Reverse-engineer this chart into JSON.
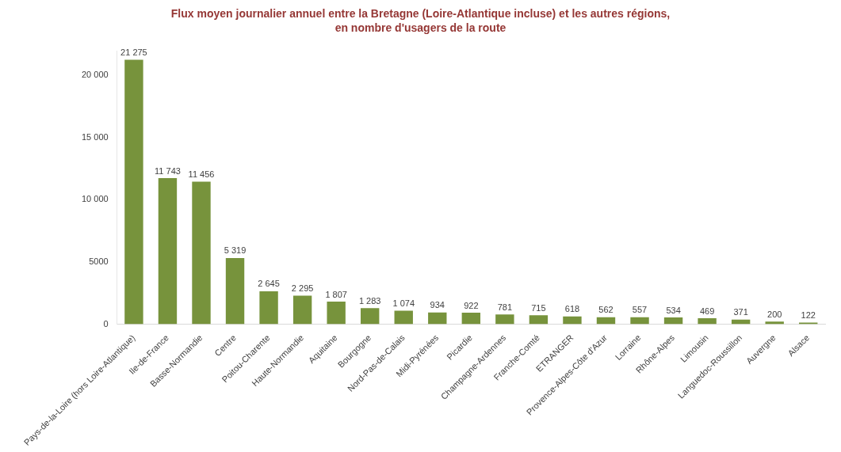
{
  "chart_data": {
    "type": "bar",
    "title": "Flux moyen journalier annuel entre la Bretagne (Loire-Atlantique incluse) et les autres régions, en nombre d'usagers de la route",
    "categories": [
      "Pays-de-la-Loire (hors Loire-Atlantique)",
      "Ile-de-France",
      "Basse-Normandie",
      "Centre",
      "Poitou-Charente",
      "Haute-Normandie",
      "Aquitaine",
      "Bourgogne",
      "Nord-Pas-de-Calais",
      "Midi-Pyrénées",
      "Picardie",
      "Champagne-Ardennes",
      "Franche-Comté",
      "ETRANGER",
      "Provence-Alpes-Côte d'Azur",
      "Lorraine",
      "Rhône-Alpes",
      "Limousin",
      "Languedoc-Roussillon",
      "Auvergne",
      "Alsace"
    ],
    "values": [
      21275,
      11743,
      11456,
      5319,
      2645,
      2295,
      1807,
      1283,
      1074,
      934,
      922,
      781,
      715,
      618,
      562,
      557,
      534,
      469,
      371,
      200,
      122
    ],
    "value_labels": [
      "21 275",
      "11 743",
      "11 456",
      "5 319",
      "2 645",
      "2 295",
      "1 807",
      "1 283",
      "1 074",
      "934",
      "922",
      "781",
      "715",
      "618",
      "562",
      "557",
      "534",
      "469",
      "371",
      "200",
      "122"
    ],
    "color": "#77933c",
    "ylim": [
      0,
      22000
    ],
    "yticks": [
      0,
      {
        "value": 5000,
        "label": "5000"
      },
      {
        "value": 10000,
        "label": "10 000"
      },
      {
        "value": 15000,
        "label": "15 000"
      },
      {
        "value": 20000,
        "label": "20 000"
      }
    ],
    "grid": false,
    "legend": false
  }
}
